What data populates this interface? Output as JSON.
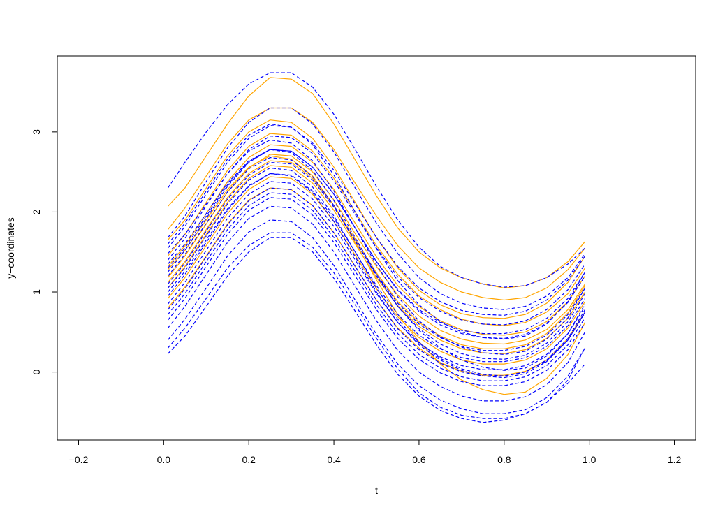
{
  "chart_data": {
    "type": "line",
    "title": "",
    "xlabel": "t",
    "ylabel": "y−coordinates",
    "xlim": [
      -0.25,
      1.25
    ],
    "ylim": [
      -0.85,
      3.95
    ],
    "x_ticks": [
      "−0.2",
      "0.0",
      "0.2",
      "0.4",
      "0.6",
      "0.8",
      "1.0",
      "1.2"
    ],
    "x_tick_values": [
      -0.2,
      0.0,
      0.2,
      0.4,
      0.6,
      0.8,
      1.0,
      1.2
    ],
    "y_ticks": [
      "0",
      "1",
      "2",
      "3"
    ],
    "y_tick_values": [
      0,
      1,
      2,
      3
    ],
    "grid": false,
    "legend": "none",
    "colors": {
      "group_a": "#ffa500",
      "group_b": "#0000ff"
    },
    "x": [
      0.01,
      0.05,
      0.1,
      0.15,
      0.2,
      0.25,
      0.3,
      0.35,
      0.4,
      0.45,
      0.5,
      0.55,
      0.6,
      0.65,
      0.7,
      0.75,
      0.8,
      0.85,
      0.9,
      0.95,
      0.99
    ],
    "group_a_style": {
      "color": "#ffa500",
      "dash": "solid"
    },
    "group_b_style": {
      "color": "#0000ff",
      "dash": "dashed"
    },
    "group_a_series": [
      [
        2.07,
        2.3,
        2.7,
        3.1,
        3.45,
        3.68,
        3.66,
        3.48,
        3.1,
        2.65,
        2.2,
        1.8,
        1.5,
        1.3,
        1.18,
        1.1,
        1.05,
        1.08,
        1.18,
        1.38,
        1.63
      ],
      [
        1.78,
        2.05,
        2.45,
        2.85,
        3.15,
        3.3,
        3.3,
        3.12,
        2.78,
        2.36,
        1.95,
        1.58,
        1.3,
        1.12,
        1.0,
        0.93,
        0.9,
        0.93,
        1.05,
        1.28,
        1.55
      ],
      [
        1.45,
        1.72,
        2.12,
        2.52,
        2.82,
        2.98,
        2.96,
        2.76,
        2.42,
        2.0,
        1.58,
        1.22,
        0.95,
        0.78,
        0.66,
        0.6,
        0.58,
        0.62,
        0.75,
        0.98,
        1.3
      ],
      [
        1.32,
        1.58,
        1.98,
        2.38,
        2.68,
        2.84,
        2.82,
        2.62,
        2.28,
        1.86,
        1.44,
        1.08,
        0.82,
        0.64,
        0.53,
        0.47,
        0.46,
        0.5,
        0.63,
        0.88,
        1.2
      ],
      [
        1.18,
        1.45,
        1.85,
        2.25,
        2.55,
        2.72,
        2.7,
        2.5,
        2.15,
        1.73,
        1.32,
        0.96,
        0.7,
        0.52,
        0.41,
        0.36,
        0.35,
        0.4,
        0.53,
        0.78,
        1.1
      ],
      [
        1.05,
        1.32,
        1.72,
        2.12,
        2.42,
        2.58,
        2.56,
        2.36,
        2.02,
        1.6,
        1.18,
        0.83,
        0.57,
        0.4,
        0.29,
        0.24,
        0.23,
        0.28,
        0.42,
        0.67,
        1.0
      ],
      [
        0.92,
        1.18,
        1.58,
        1.98,
        2.28,
        2.44,
        2.42,
        2.22,
        1.88,
        1.46,
        1.04,
        0.69,
        0.43,
        0.26,
        0.15,
        0.1,
        0.1,
        0.15,
        0.29,
        0.55,
        0.88
      ],
      [
        0.8,
        1.06,
        1.45,
        1.85,
        2.15,
        2.3,
        2.28,
        2.08,
        1.74,
        1.32,
        0.9,
        0.55,
        0.3,
        0.12,
        0.01,
        -0.04,
        -0.04,
        0.01,
        0.15,
        0.42,
        0.75
      ],
      [
        1.65,
        1.9,
        2.3,
        2.7,
        3.0,
        3.15,
        3.12,
        2.92,
        2.56,
        2.12,
        1.68,
        1.3,
        1.02,
        0.84,
        0.73,
        0.68,
        0.67,
        0.72,
        0.86,
        1.12,
        1.45
      ],
      [
        1.28,
        1.52,
        1.9,
        2.28,
        2.56,
        2.7,
        2.66,
        2.45,
        2.08,
        1.62,
        1.15,
        0.72,
        0.38,
        0.1,
        -0.1,
        -0.22,
        -0.28,
        -0.25,
        -0.08,
        0.22,
        0.62
      ],
      [
        1.12,
        1.38,
        1.78,
        2.18,
        2.48,
        2.64,
        2.62,
        2.42,
        2.08,
        1.66,
        1.24,
        0.88,
        0.62,
        0.45,
        0.34,
        0.29,
        0.29,
        0.34,
        0.48,
        0.74,
        1.08
      ]
    ],
    "group_b_series": [
      [
        2.3,
        2.62,
        3.0,
        3.34,
        3.6,
        3.74,
        3.74,
        3.56,
        3.22,
        2.78,
        2.32,
        1.9,
        1.56,
        1.32,
        1.18,
        1.1,
        1.06,
        1.08,
        1.18,
        1.35,
        1.55
      ],
      [
        1.68,
        1.95,
        2.38,
        2.8,
        3.12,
        3.3,
        3.3,
        3.1,
        2.75,
        2.3,
        1.86,
        1.48,
        1.18,
        0.98,
        0.86,
        0.8,
        0.78,
        0.82,
        0.95,
        1.18,
        1.48
      ],
      [
        1.55,
        1.82,
        2.22,
        2.62,
        2.92,
        3.08,
        3.06,
        2.86,
        2.52,
        2.1,
        1.68,
        1.32,
        1.05,
        0.88,
        0.77,
        0.72,
        0.71,
        0.76,
        0.9,
        1.15,
        1.45
      ],
      [
        1.4,
        1.67,
        2.08,
        2.48,
        2.78,
        2.95,
        2.93,
        2.73,
        2.39,
        1.97,
        1.55,
        1.19,
        0.93,
        0.76,
        0.65,
        0.6,
        0.59,
        0.64,
        0.78,
        1.03,
        1.35
      ],
      [
        1.25,
        1.52,
        1.92,
        2.32,
        2.62,
        2.78,
        2.76,
        2.56,
        2.22,
        1.8,
        1.38,
        1.02,
        0.76,
        0.59,
        0.48,
        0.43,
        0.42,
        0.47,
        0.61,
        0.87,
        1.2
      ],
      [
        1.35,
        1.6,
        1.98,
        2.36,
        2.64,
        2.78,
        2.74,
        2.52,
        2.14,
        1.68,
        1.22,
        0.82,
        0.52,
        0.3,
        0.15,
        0.06,
        0.02,
        0.05,
        0.2,
        0.48,
        0.85
      ],
      [
        1.1,
        1.36,
        1.76,
        2.16,
        2.46,
        2.62,
        2.6,
        2.4,
        2.06,
        1.64,
        1.22,
        0.86,
        0.6,
        0.43,
        0.32,
        0.27,
        0.27,
        0.32,
        0.46,
        0.72,
        1.05
      ],
      [
        1.0,
        1.26,
        1.65,
        2.04,
        2.33,
        2.48,
        2.45,
        2.24,
        1.88,
        1.44,
        1.0,
        0.62,
        0.34,
        0.15,
        0.02,
        -0.05,
        -0.07,
        -0.02,
        0.13,
        0.4,
        0.75
      ],
      [
        0.85,
        1.12,
        1.52,
        1.92,
        2.22,
        2.38,
        2.36,
        2.16,
        1.82,
        1.4,
        0.98,
        0.62,
        0.36,
        0.19,
        0.08,
        0.03,
        0.03,
        0.08,
        0.22,
        0.48,
        0.82
      ],
      [
        0.72,
        0.98,
        1.38,
        1.78,
        2.08,
        2.24,
        2.22,
        2.02,
        1.68,
        1.26,
        0.84,
        0.48,
        0.22,
        0.05,
        -0.06,
        -0.11,
        -0.11,
        -0.06,
        0.08,
        0.34,
        0.68
      ],
      [
        0.55,
        0.82,
        1.22,
        1.62,
        1.92,
        2.07,
        2.05,
        1.85,
        1.5,
        1.07,
        0.64,
        0.27,
        0.0,
        -0.18,
        -0.3,
        -0.36,
        -0.36,
        -0.31,
        -0.16,
        0.12,
        0.5
      ],
      [
        0.3,
        0.55,
        0.92,
        1.3,
        1.58,
        1.74,
        1.74,
        1.56,
        1.24,
        0.84,
        0.42,
        0.04,
        -0.26,
        -0.44,
        -0.54,
        -0.58,
        -0.58,
        -0.52,
        -0.38,
        -0.1,
        0.3
      ],
      [
        0.23,
        0.45,
        0.82,
        1.2,
        1.5,
        1.68,
        1.68,
        1.5,
        1.17,
        0.76,
        0.34,
        -0.03,
        -0.3,
        -0.48,
        -0.58,
        -0.63,
        -0.6,
        -0.52,
        -0.38,
        -0.14,
        0.1
      ],
      [
        1.48,
        1.72,
        2.1,
        2.48,
        2.76,
        2.9,
        2.86,
        2.64,
        2.26,
        1.8,
        1.34,
        0.94,
        0.64,
        0.44,
        0.31,
        0.24,
        0.22,
        0.26,
        0.41,
        0.68,
        1.05
      ],
      [
        1.2,
        1.47,
        1.86,
        2.25,
        2.54,
        2.68,
        2.65,
        2.44,
        2.08,
        1.64,
        1.2,
        0.82,
        0.54,
        0.35,
        0.23,
        0.17,
        0.16,
        0.21,
        0.36,
        0.63,
        0.98
      ],
      [
        0.95,
        1.22,
        1.62,
        2.02,
        2.32,
        2.48,
        2.46,
        2.26,
        1.92,
        1.5,
        1.08,
        0.72,
        0.46,
        0.29,
        0.18,
        0.13,
        0.13,
        0.18,
        0.32,
        0.58,
        0.92
      ],
      [
        0.65,
        0.92,
        1.32,
        1.72,
        2.02,
        2.18,
        2.16,
        1.96,
        1.62,
        1.2,
        0.78,
        0.42,
        0.16,
        -0.01,
        -0.12,
        -0.17,
        -0.17,
        -0.12,
        0.02,
        0.28,
        0.62
      ],
      [
        1.6,
        1.86,
        2.26,
        2.66,
        2.96,
        3.1,
        3.06,
        2.84,
        2.46,
        2.0,
        1.54,
        1.14,
        0.84,
        0.63,
        0.5,
        0.43,
        0.41,
        0.45,
        0.6,
        0.88,
        1.25
      ],
      [
        0.4,
        0.66,
        1.05,
        1.45,
        1.75,
        1.9,
        1.88,
        1.68,
        1.33,
        0.9,
        0.47,
        0.1,
        -0.17,
        -0.35,
        -0.46,
        -0.52,
        -0.52,
        -0.47,
        -0.32,
        -0.05,
        0.3
      ],
      [
        1.3,
        1.55,
        1.95,
        2.34,
        2.63,
        2.78,
        2.76,
        2.56,
        2.22,
        1.8,
        1.38,
        1.03,
        0.78,
        0.62,
        0.52,
        0.48,
        0.48,
        0.53,
        0.67,
        0.92,
        1.25
      ],
      [
        1.05,
        1.3,
        1.7,
        2.1,
        2.4,
        2.55,
        2.52,
        2.31,
        1.95,
        1.5,
        1.05,
        0.66,
        0.37,
        0.17,
        0.04,
        -0.03,
        -0.05,
        0.0,
        0.15,
        0.42,
        0.78
      ],
      [
        0.78,
        1.04,
        1.44,
        1.84,
        2.14,
        2.3,
        2.28,
        2.08,
        1.74,
        1.32,
        0.9,
        0.54,
        0.28,
        0.11,
        0.0,
        -0.05,
        -0.05,
        0.0,
        0.14,
        0.4,
        0.74
      ]
    ]
  },
  "axis_text": {
    "xlabel": "t",
    "ylabel": "y−coordinates"
  }
}
